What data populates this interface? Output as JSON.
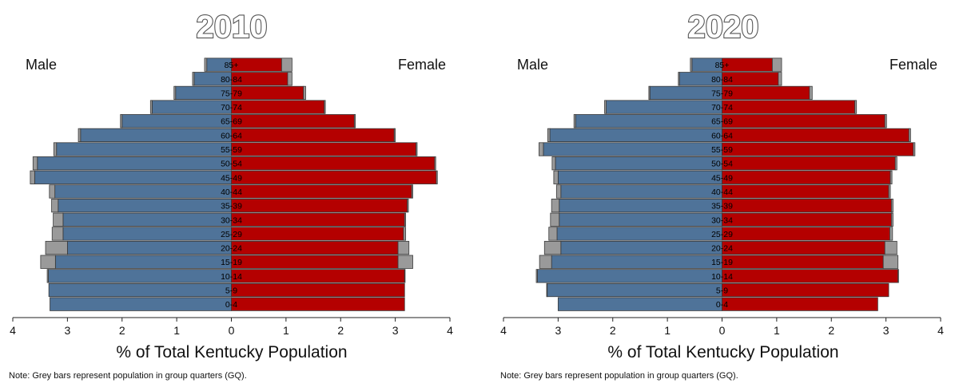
{
  "colors": {
    "male": "#4f7399",
    "female": "#b40000",
    "gq": "#9a9a9a",
    "outline": "#3a3a3a",
    "title_fill": "#ffffff",
    "title_stroke": "#555555"
  },
  "chart_data": [
    {
      "type": "bar",
      "orientation": "horizontal-population-pyramid",
      "title": "2010",
      "xlabel": "% of Total Kentucky Population",
      "xlim": [
        -4,
        4
      ],
      "x_ticks": [
        -4,
        -3,
        -2,
        -1,
        0,
        1,
        2,
        3,
        4
      ],
      "x_tick_labels": [
        "4",
        "3",
        "2",
        "1",
        "0",
        "1",
        "2",
        "3",
        "4"
      ],
      "left_label": "Male",
      "right_label": "Female",
      "note": "Note:  Grey bars represent population in group quarters (GQ).",
      "categories": [
        "0-4",
        "5-9",
        "10-14",
        "15-19",
        "20-24",
        "25-29",
        "30-34",
        "35-39",
        "40-44",
        "45-49",
        "50-54",
        "55-59",
        "60-64",
        "65-69",
        "70-74",
        "75-79",
        "80-84",
        "85+"
      ],
      "series": [
        {
          "name": "Male",
          "values": [
            3.32,
            3.34,
            3.35,
            3.22,
            3.0,
            3.08,
            3.08,
            3.17,
            3.23,
            3.6,
            3.55,
            3.2,
            2.76,
            2.0,
            1.45,
            1.02,
            0.68,
            0.45
          ]
        },
        {
          "name": "Male GQ",
          "values": [
            0,
            0,
            0.02,
            0.27,
            0.4,
            0.2,
            0.18,
            0.12,
            0.1,
            0.08,
            0.08,
            0.05,
            0.04,
            0.03,
            0.03,
            0.03,
            0.03,
            0.04
          ]
        },
        {
          "name": "Female",
          "values": [
            3.17,
            3.17,
            3.17,
            3.05,
            3.05,
            3.15,
            3.17,
            3.22,
            3.3,
            3.75,
            3.72,
            3.38,
            2.98,
            2.25,
            1.7,
            1.32,
            1.03,
            0.92
          ]
        },
        {
          "name": "Female GQ",
          "values": [
            0,
            0,
            0.01,
            0.27,
            0.2,
            0.04,
            0.02,
            0.02,
            0.02,
            0.02,
            0.02,
            0.02,
            0.02,
            0.02,
            0.02,
            0.04,
            0.08,
            0.19
          ]
        }
      ]
    },
    {
      "type": "bar",
      "orientation": "horizontal-population-pyramid",
      "title": "2020",
      "xlabel": "% of Total Kentucky Population",
      "xlim": [
        -4,
        4
      ],
      "x_ticks": [
        -4,
        -3,
        -2,
        -1,
        0,
        1,
        2,
        3,
        4
      ],
      "x_tick_labels": [
        "4",
        "3",
        "2",
        "1",
        "0",
        "1",
        "2",
        "3",
        "4"
      ],
      "left_label": "Male",
      "right_label": "Female",
      "note": "Note:  Grey bars represent population in group quarters (GQ).",
      "categories": [
        "0-4",
        "5-9",
        "10-14",
        "15-19",
        "20-24",
        "25-29",
        "30-34",
        "35-39",
        "40-44",
        "45-49",
        "50-54",
        "55-59",
        "60-64",
        "65-69",
        "70-74",
        "75-79",
        "80-84",
        "85+"
      ],
      "series": [
        {
          "name": "Male",
          "values": [
            3.0,
            3.2,
            3.38,
            3.12,
            2.95,
            3.02,
            2.98,
            2.98,
            2.95,
            3.0,
            3.05,
            3.27,
            3.15,
            2.68,
            2.12,
            1.32,
            0.78,
            0.55
          ]
        },
        {
          "name": "Male GQ",
          "values": [
            0,
            0.01,
            0.02,
            0.22,
            0.3,
            0.15,
            0.16,
            0.14,
            0.08,
            0.08,
            0.06,
            0.08,
            0.04,
            0.03,
            0.03,
            0.02,
            0.02,
            0.03
          ]
        },
        {
          "name": "Female",
          "values": [
            2.85,
            3.05,
            3.22,
            2.95,
            2.98,
            3.07,
            3.1,
            3.1,
            3.05,
            3.08,
            3.17,
            3.5,
            3.42,
            2.98,
            2.43,
            1.6,
            1.03,
            0.92
          ]
        },
        {
          "name": "Female GQ",
          "values": [
            0,
            0,
            0.01,
            0.27,
            0.22,
            0.05,
            0.03,
            0.03,
            0.03,
            0.03,
            0.03,
            0.03,
            0.03,
            0.03,
            0.03,
            0.05,
            0.06,
            0.17
          ]
        }
      ]
    }
  ]
}
